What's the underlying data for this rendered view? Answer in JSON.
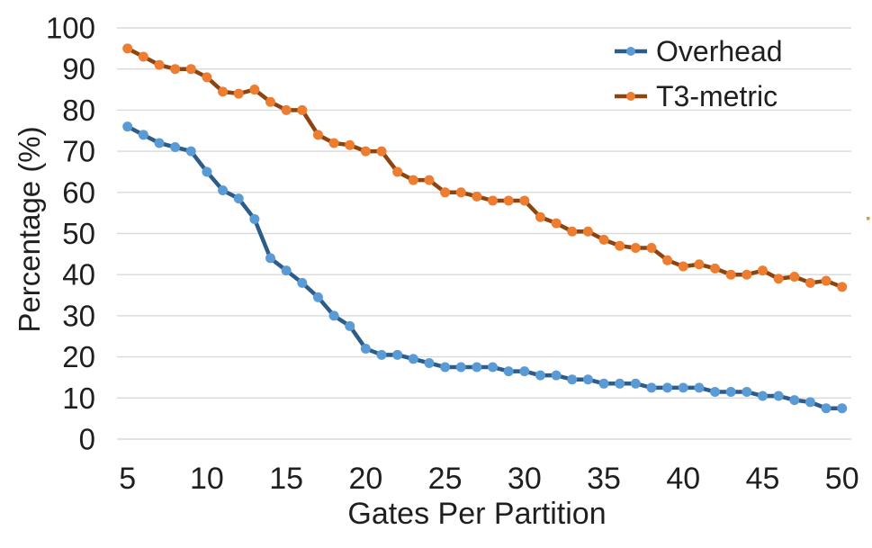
{
  "chart_data": {
    "type": "line",
    "title": "",
    "xlabel": "Gates Per Partition",
    "ylabel": "Percentage (%)",
    "xlim": [
      5,
      50
    ],
    "ylim": [
      0,
      100
    ],
    "grid": "horizontal",
    "legend_position": "top-right",
    "xticks": [
      5,
      10,
      15,
      20,
      25,
      30,
      35,
      40,
      45,
      50
    ],
    "yticks": [
      0,
      10,
      20,
      30,
      40,
      50,
      60,
      70,
      80,
      90,
      100
    ],
    "x": [
      5,
      6,
      7,
      8,
      9,
      10,
      11,
      12,
      13,
      14,
      15,
      16,
      17,
      18,
      19,
      20,
      21,
      22,
      23,
      24,
      25,
      26,
      27,
      28,
      29,
      30,
      31,
      32,
      33,
      34,
      35,
      36,
      37,
      38,
      39,
      40,
      41,
      42,
      43,
      44,
      45,
      46,
      47,
      48,
      49,
      50
    ],
    "series": [
      {
        "name": "Overhead",
        "line_color": "#2B5C8A",
        "marker_color": "#5B9BD5",
        "values": [
          76,
          74,
          72,
          71,
          70,
          65,
          60.5,
          58.5,
          53.5,
          44,
          41,
          38,
          34.5,
          30,
          27.5,
          22,
          20.5,
          20.5,
          19.5,
          18.5,
          17.5,
          17.5,
          17.5,
          17.5,
          16.5,
          16.5,
          15.5,
          15.5,
          14.5,
          14.5,
          13.5,
          13.5,
          13.5,
          12.5,
          12.5,
          12.5,
          12.5,
          11.5,
          11.5,
          11.5,
          10.5,
          10.5,
          9.5,
          9,
          7.5,
          7.5
        ]
      },
      {
        "name": "T3-metric",
        "line_color": "#8C4511",
        "marker_color": "#ED7D31",
        "values": [
          95,
          93,
          91,
          90,
          90,
          88,
          84.5,
          84,
          85,
          82,
          80,
          80,
          74,
          72,
          71.5,
          70,
          70,
          65,
          63,
          63,
          60,
          60,
          59,
          58,
          58,
          58,
          54,
          52.5,
          50.5,
          50.5,
          48.5,
          47,
          46.5,
          46.5,
          43.5,
          42,
          42.5,
          41.5,
          40,
          40,
          41,
          39,
          39.5,
          38,
          38.5,
          37
        ]
      }
    ]
  },
  "colors": {
    "gridline": "#D9D9D9",
    "text": "#1F1F1F",
    "background": "#FFFFFF",
    "artifact_dot": "#D99B3C"
  }
}
